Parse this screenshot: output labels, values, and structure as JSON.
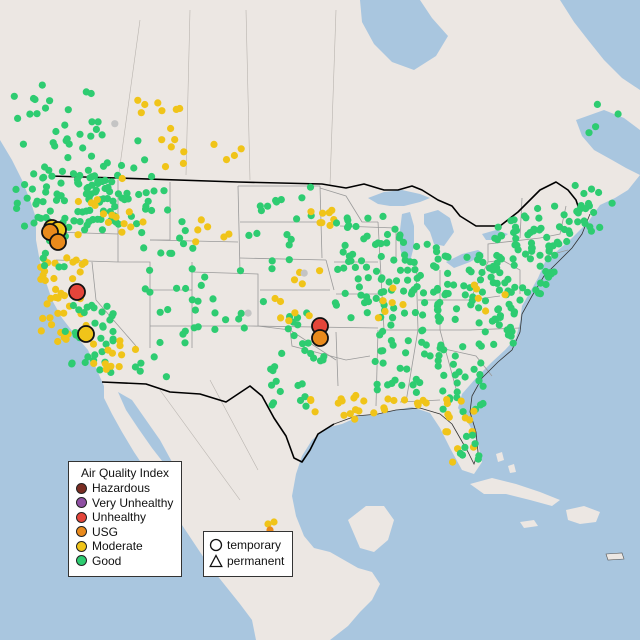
{
  "map": {
    "colors": {
      "ocean": "#a9c6df",
      "land": "#ece7e3",
      "state_lines": "#9a9a9a",
      "us_border": "#000000",
      "lakes": "#a9c6df"
    },
    "categories": [
      {
        "key": "hazardous",
        "label": "Hazardous",
        "color": "#7a2d22"
      },
      {
        "key": "very_unhealthy",
        "label": "Very Unhealthy",
        "color": "#8f4fa3"
      },
      {
        "key": "unhealthy",
        "label": "Unhealthy",
        "color": "#e4453a"
      },
      {
        "key": "usg",
        "label": "USG",
        "color": "#e98a1c"
      },
      {
        "key": "moderate",
        "label": "Moderate",
        "color": "#f0c419"
      },
      {
        "key": "good",
        "label": "Good",
        "color": "#2ecc71"
      },
      {
        "key": "nodata",
        "color": "#c4c4c4"
      }
    ]
  },
  "legend": {
    "title": "Air Quality Index",
    "items": [
      {
        "label": "Hazardous",
        "color": "#7a2d22"
      },
      {
        "label": "Very Unhealthy",
        "color": "#8f4fa3"
      },
      {
        "label": "Unhealthy",
        "color": "#e4453a"
      },
      {
        "label": "USG",
        "color": "#e98a1c"
      },
      {
        "label": "Moderate",
        "color": "#f0c419"
      },
      {
        "label": "Good",
        "color": "#2ecc71"
      }
    ]
  },
  "monitor_legend": {
    "temporary_label": "temporary",
    "permanent_label": "permanent"
  }
}
